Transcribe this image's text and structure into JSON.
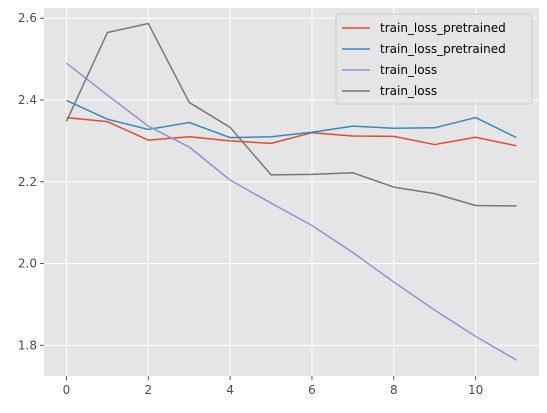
{
  "chart_data": {
    "type": "line",
    "title": "",
    "xlabel": "",
    "ylabel": "",
    "x": [
      0,
      1,
      2,
      3,
      4,
      5,
      6,
      7,
      8,
      9,
      10,
      11
    ],
    "xlim": [
      -0.55,
      11.55
    ],
    "ylim": [
      1.725,
      2.625
    ],
    "xticks": [
      0,
      2,
      4,
      6,
      8,
      10
    ],
    "yticks": [
      1.8,
      2.0,
      2.2,
      2.4,
      2.6
    ],
    "grid": true,
    "legend_position": "top-right",
    "series": [
      {
        "name": "train_loss_pretrained",
        "color": "#e24a33",
        "values": [
          2.357,
          2.347,
          2.302,
          2.31,
          2.3,
          2.294,
          2.32,
          2.312,
          2.311,
          2.291,
          2.309,
          2.288
        ]
      },
      {
        "name": "train_loss_pretrained",
        "color": "#348abd",
        "values": [
          2.399,
          2.353,
          2.328,
          2.345,
          2.308,
          2.31,
          2.321,
          2.336,
          2.331,
          2.332,
          2.357,
          2.308
        ]
      },
      {
        "name": "train_loss",
        "color": "#988ed5",
        "values": [
          2.49,
          2.412,
          2.336,
          2.285,
          2.204,
          2.148,
          2.093,
          2.027,
          1.955,
          1.886,
          1.822,
          1.764
        ]
      },
      {
        "name": "train_loss",
        "color": "#777777",
        "values": [
          2.348,
          2.565,
          2.587,
          2.394,
          2.333,
          2.217,
          2.218,
          2.222,
          2.187,
          2.171,
          2.142,
          2.141
        ]
      }
    ]
  }
}
